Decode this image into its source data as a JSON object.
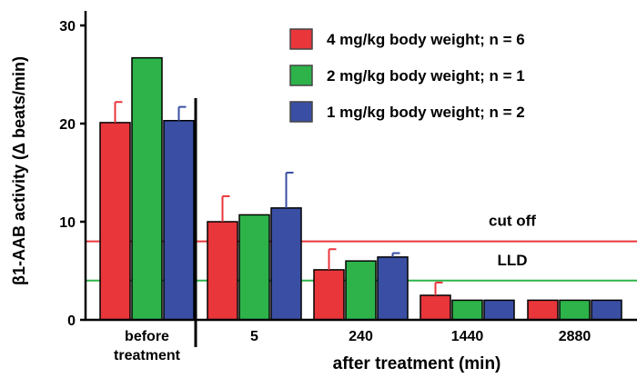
{
  "chart_data": {
    "type": "bar",
    "xlabel": "after treatment (min)",
    "ylabel": "β1-AAB activity (Δ beats/min)",
    "ylim": [
      0,
      30
    ],
    "yticks": [
      "0",
      "10",
      "20",
      "30"
    ],
    "groups": [
      {
        "label_lines": [
          "before",
          "treatment"
        ]
      },
      {
        "label_lines": [
          "5"
        ]
      },
      {
        "label_lines": [
          "240"
        ]
      },
      {
        "label_lines": [
          "1440"
        ]
      },
      {
        "label_lines": [
          "2880"
        ]
      }
    ],
    "series": [
      {
        "name": "4 mg/kg body weight; n = 6",
        "color": "#e8363b",
        "values": [
          20.1,
          10.0,
          5.1,
          2.5,
          2.0
        ],
        "errors": [
          2.1,
          2.6,
          2.1,
          1.3,
          0
        ]
      },
      {
        "name": "2 mg/kg body weight; n = 1",
        "color": "#2db34a",
        "values": [
          26.7,
          10.7,
          6.0,
          2.0,
          2.0
        ],
        "errors": [
          0,
          0,
          0,
          0,
          0
        ]
      },
      {
        "name": "1 mg/kg body weight; n = 2",
        "color": "#3a4fa3",
        "values": [
          20.3,
          11.4,
          6.4,
          2.0,
          2.0
        ],
        "errors": [
          1.4,
          3.6,
          0.4,
          0,
          0
        ]
      }
    ],
    "reference_lines": [
      {
        "label": "cut off",
        "value": 8,
        "color": "#e8363b"
      },
      {
        "label": "LLD",
        "value": 4,
        "color": "#2db34a"
      }
    ],
    "legend_position": "top-right",
    "grid": false
  }
}
